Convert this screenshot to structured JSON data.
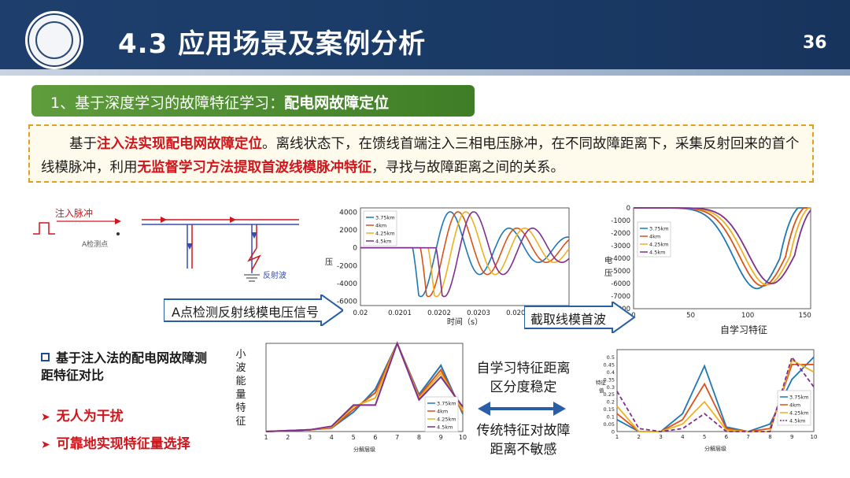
{
  "header": {
    "title": "4.3 应用场景及案例分析",
    "page_number": "36"
  },
  "section": {
    "prefix": "1、基于深度学习的故障特征学习：",
    "emphasis": "配电网故障定位"
  },
  "description": {
    "p1": "基于",
    "h1": "注入法实现配电网故障定位",
    "p2": "。离线状态下，在馈线首端注入三相电压脉冲，在不同故障距离下，采集反射回来的首个线模脉冲，利用",
    "h2": "无监督学习方法提取首波线模脉冲特征",
    "p3": "，寻找与故障距离之间的关系。"
  },
  "diagram": {
    "inject_label": "注入脉冲",
    "point_label": "A检测点",
    "reflect_label": "反射波"
  },
  "arrows": {
    "a1": "A点检测反射线模电压信号",
    "a2": "截取线模首波"
  },
  "bullets": {
    "blue": "基于注入法的配电网故障测距特征对比",
    "red1": "无人为干扰",
    "red2": "可靠地实现特征量选择"
  },
  "middle": {
    "top": "自学习特征距离区分度稳定",
    "bottom": "传统特征对故障距离不敏感"
  },
  "colors": {
    "s1": "#1f77b4",
    "s2": "#d95319",
    "s3": "#edb120",
    "s4": "#7e2f8e"
  },
  "chart_data": [
    {
      "type": "line",
      "id": "voltage",
      "xlabel": "时间（s）",
      "ylabel": "压",
      "xticks": [
        "0.02",
        "0.0201",
        "0.0202",
        "0.0203",
        "0.0204",
        "0.020"
      ],
      "yticks": [
        "4000",
        "2000",
        "0",
        "-2000",
        "-4000",
        "-6000"
      ],
      "ylim": [
        -6500,
        4500
      ],
      "legend": [
        "3.75km",
        "4km",
        "4.25km",
        "4.5km"
      ]
    },
    {
      "type": "line",
      "id": "self_feature",
      "title": "自学习特征",
      "ylabel": "电压",
      "xticks": [
        "0",
        "50",
        "100",
        "150"
      ],
      "yticks": [
        "0",
        "-1000",
        "-2000",
        "-3000",
        "-4000",
        "-5000",
        "-6000",
        "-7000",
        "-8000"
      ],
      "ylim": [
        -8000,
        0
      ],
      "legend": [
        "3.75km",
        "4km",
        "4.25km",
        "4.5km"
      ]
    },
    {
      "type": "line",
      "id": "wavelet",
      "ylabel": "小波能量特征",
      "xlabel": "分解层级",
      "x": [
        1,
        2,
        3,
        4,
        5,
        6,
        7,
        8,
        9,
        10
      ],
      "xticks": [
        "1",
        "2",
        "3",
        "4",
        "5",
        "6",
        "7",
        "8",
        "9",
        "10"
      ],
      "legend": [
        "3.75km",
        "4km",
        "4.25km",
        "4.5km"
      ],
      "series": [
        {
          "values": [
            0.0,
            0.01,
            0.02,
            0.04,
            0.22,
            0.48,
            1.0,
            0.42,
            0.75,
            0.2
          ]
        },
        {
          "values": [
            0.0,
            0.01,
            0.02,
            0.04,
            0.25,
            0.44,
            1.0,
            0.4,
            0.7,
            0.22
          ]
        },
        {
          "values": [
            0.0,
            0.01,
            0.02,
            0.05,
            0.28,
            0.38,
            1.0,
            0.38,
            0.66,
            0.24
          ]
        },
        {
          "values": [
            0.0,
            0.01,
            0.02,
            0.06,
            0.3,
            0.3,
            1.0,
            0.36,
            0.62,
            0.28
          ]
        }
      ]
    },
    {
      "type": "line",
      "id": "traditional",
      "ylabel": "特征值",
      "xlabel": "分解层级",
      "x": [
        1,
        2,
        3,
        4,
        5,
        6,
        7,
        8,
        9,
        10
      ],
      "xticks": [
        "1",
        "2",
        "3",
        "4",
        "5",
        "6",
        "7",
        "8",
        "9",
        "10"
      ],
      "yticks": [
        "0",
        "0.05",
        "0.1",
        "0.15",
        "0.2",
        "0.25",
        "0.3",
        "0.35",
        "0.4",
        "0.45",
        "0.5"
      ],
      "ylim": [
        0,
        0.55
      ],
      "legend": [
        "3.75km",
        "4km",
        "4.25km",
        "4.5km"
      ],
      "series": [
        {
          "values": [
            0.08,
            0.0,
            0.0,
            0.12,
            0.44,
            0.03,
            0.0,
            0.05,
            0.35,
            0.5
          ]
        },
        {
          "values": [
            0.12,
            0.0,
            0.0,
            0.08,
            0.32,
            0.02,
            0.0,
            0.02,
            0.45,
            0.45
          ]
        },
        {
          "values": [
            0.17,
            0.0,
            0.0,
            0.05,
            0.2,
            0.01,
            0.0,
            0.0,
            0.48,
            0.4
          ]
        },
        {
          "values": [
            0.27,
            0.02,
            0.0,
            0.02,
            0.12,
            0.0,
            0.0,
            0.0,
            0.5,
            0.3
          ]
        }
      ]
    }
  ]
}
